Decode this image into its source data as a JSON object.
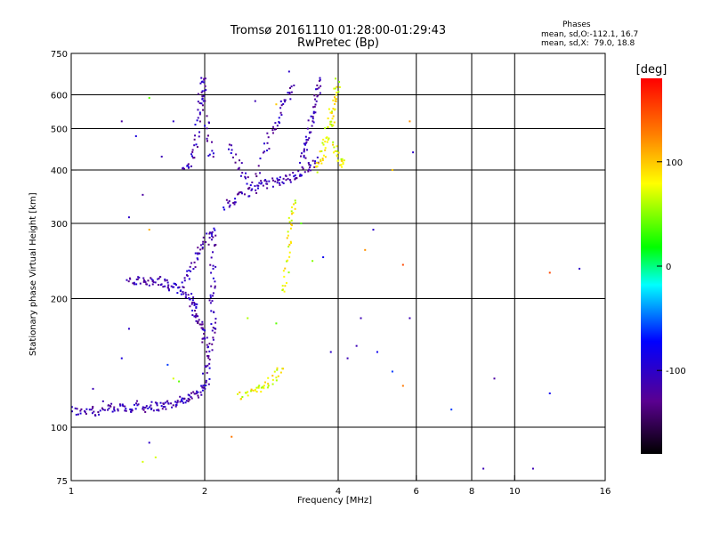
{
  "chart_data": {
    "type": "scatter",
    "title": "Tromsø 20161110 01:28:00-01:29:43",
    "subtitle": "RwPretec (Bp)",
    "xlabel": "Frequency [MHz]",
    "ylabel": "Stationary phase Virtual Height [km]",
    "xscale": "log",
    "yscale": "log",
    "xlim": [
      1,
      16
    ],
    "ylim": [
      75,
      750
    ],
    "x_ticks": [
      1,
      2,
      4,
      6,
      8,
      10,
      16
    ],
    "x_tick_labels": [
      "1",
      "2",
      "4",
      "6",
      "8",
      "10",
      "16"
    ],
    "y_ticks": [
      75,
      100,
      200,
      300,
      400,
      500,
      600,
      750
    ],
    "y_tick_labels": [
      "75",
      "100",
      "200",
      "300",
      "400",
      "500",
      "600",
      "750"
    ],
    "x_gridlines": [
      2,
      4,
      6,
      8,
      10
    ],
    "y_gridlines": [
      100,
      200,
      300,
      400,
      500,
      600
    ],
    "grid": true,
    "phases_header": "Phases",
    "phases_line1": "mean, sd,O:-112.1, 16.7",
    "phases_line2": "mean, sd,X:  79.0, 18.8",
    "colorbar": {
      "label": "[deg]",
      "range": [
        -180,
        180
      ],
      "ticks": [
        100,
        0,
        -100
      ],
      "tick_labels": [
        "100",
        "0",
        "-100"
      ]
    },
    "series": [
      {
        "name": "O",
        "phase_deg": -112,
        "traces": [
          [
            [
              1.0,
              110
            ],
            [
              1.05,
              108
            ],
            [
              1.1,
              111
            ],
            [
              1.15,
              108
            ],
            [
              1.2,
              112
            ],
            [
              1.25,
              109
            ],
            [
              1.3,
              112
            ],
            [
              1.35,
              110
            ],
            [
              1.4,
              113
            ],
            [
              1.45,
              111
            ],
            [
              1.5,
              112
            ],
            [
              1.55,
              112
            ],
            [
              1.6,
              112
            ],
            [
              1.65,
              113
            ],
            [
              1.7,
              113
            ],
            [
              1.75,
              115
            ],
            [
              1.8,
              117
            ],
            [
              1.85,
              117
            ],
            [
              1.9,
              119
            ],
            [
              1.95,
              122
            ],
            [
              2.0,
              125
            ],
            [
              2.03,
              127
            ]
          ],
          [
            [
              1.35,
              220
            ],
            [
              1.4,
              219
            ],
            [
              1.45,
              220
            ],
            [
              1.5,
              220
            ],
            [
              1.55,
              218
            ],
            [
              1.6,
              221
            ],
            [
              1.65,
              214
            ],
            [
              1.7,
              212
            ],
            [
              1.75,
              210
            ],
            [
              1.8,
              206
            ],
            [
              1.85,
              202
            ],
            [
              1.88,
              195
            ],
            [
              1.9,
              190
            ],
            [
              1.92,
              182
            ],
            [
              1.95,
              176
            ],
            [
              1.97,
              170
            ],
            [
              2.0,
              165
            ],
            [
              2.02,
              155
            ]
          ],
          [
            [
              1.8,
              215
            ],
            [
              1.85,
              230
            ],
            [
              1.9,
              245
            ],
            [
              1.95,
              258
            ],
            [
              2.0,
              270
            ],
            [
              2.05,
              280
            ],
            [
              2.1,
              288
            ],
            [
              2.08,
              250
            ],
            [
              2.1,
              220
            ],
            [
              2.07,
              200
            ],
            [
              2.1,
              180
            ],
            [
              2.08,
              165
            ],
            [
              2.05,
              150
            ],
            [
              2.03,
              140
            ],
            [
              2.0,
              133
            ]
          ],
          [
            [
              1.8,
              400
            ],
            [
              1.85,
              410
            ],
            [
              1.9,
              440
            ],
            [
              1.93,
              500
            ],
            [
              1.95,
              560
            ],
            [
              1.97,
              620
            ],
            [
              1.98,
              660
            ],
            [
              2.0,
              590
            ],
            [
              2.02,
              520
            ],
            [
              2.05,
              460
            ],
            [
              2.08,
              420
            ]
          ],
          [
            [
              2.2,
              330
            ],
            [
              2.3,
              335
            ],
            [
              2.4,
              345
            ],
            [
              2.5,
              355
            ],
            [
              2.6,
              362
            ],
            [
              2.7,
              370
            ],
            [
              2.8,
              372
            ],
            [
              2.9,
              375
            ],
            [
              3.0,
              378
            ],
            [
              3.1,
              382
            ],
            [
              3.2,
              388
            ],
            [
              3.3,
              394
            ],
            [
              3.4,
              402
            ],
            [
              3.5,
              415
            ],
            [
              3.6,
              420
            ]
          ],
          [
            [
              2.25,
              460
            ],
            [
              2.35,
              420
            ],
            [
              2.45,
              390
            ],
            [
              2.55,
              370
            ],
            [
              2.7,
              430
            ],
            [
              2.8,
              480
            ],
            [
              2.9,
              520
            ],
            [
              3.0,
              560
            ],
            [
              3.1,
              600
            ],
            [
              3.2,
              640
            ]
          ],
          [
            [
              3.3,
              420
            ],
            [
              3.35,
              440
            ],
            [
              3.4,
              470
            ],
            [
              3.45,
              500
            ],
            [
              3.5,
              540
            ],
            [
              3.55,
              580
            ],
            [
              3.6,
              620
            ],
            [
              3.65,
              650
            ]
          ]
        ]
      },
      {
        "name": "X",
        "phase_deg": 79,
        "traces": [
          [
            [
              2.4,
              118
            ],
            [
              2.5,
              120
            ],
            [
              2.6,
              122
            ],
            [
              2.7,
              125
            ],
            [
              2.8,
              128
            ],
            [
              2.9,
              132
            ],
            [
              3.0,
              136
            ]
          ],
          [
            [
              3.0,
              205
            ],
            [
              3.05,
              230
            ],
            [
              3.1,
              260
            ],
            [
              3.12,
              290
            ],
            [
              3.15,
              320
            ],
            [
              3.2,
              340
            ]
          ],
          [
            [
              3.6,
              400
            ],
            [
              3.65,
              420
            ],
            [
              3.7,
              440
            ],
            [
              3.75,
              470
            ],
            [
              3.8,
              500
            ],
            [
              3.85,
              540
            ],
            [
              3.9,
              560
            ],
            [
              3.95,
              600
            ],
            [
              4.0,
              640
            ],
            [
              3.9,
              450
            ],
            [
              4.0,
              430
            ],
            [
              4.05,
              420
            ],
            [
              4.1,
              410
            ]
          ]
        ]
      }
    ],
    "noise_points": [
      {
        "x": 1.3,
        "y": 520,
        "phase": -120
      },
      {
        "x": 1.5,
        "y": 590,
        "phase": 40
      },
      {
        "x": 1.4,
        "y": 480,
        "phase": -90
      },
      {
        "x": 1.6,
        "y": 430,
        "phase": -110
      },
      {
        "x": 1.35,
        "y": 310,
        "phase": -100
      },
      {
        "x": 1.5,
        "y": 290,
        "phase": 110
      },
      {
        "x": 1.45,
        "y": 350,
        "phase": -120
      },
      {
        "x": 1.7,
        "y": 520,
        "phase": -100
      },
      {
        "x": 2.6,
        "y": 580,
        "phase": -110
      },
      {
        "x": 2.9,
        "y": 570,
        "phase": 100
      },
      {
        "x": 3.1,
        "y": 680,
        "phase": -100
      },
      {
        "x": 3.3,
        "y": 300,
        "phase": 40
      },
      {
        "x": 4.6,
        "y": 260,
        "phase": 120
      },
      {
        "x": 4.8,
        "y": 290,
        "phase": -100
      },
      {
        "x": 5.3,
        "y": 400,
        "phase": 100
      },
      {
        "x": 5.6,
        "y": 240,
        "phase": 150
      },
      {
        "x": 5.8,
        "y": 520,
        "phase": 120
      },
      {
        "x": 5.9,
        "y": 440,
        "phase": -100
      },
      {
        "x": 4.5,
        "y": 180,
        "phase": -110
      },
      {
        "x": 4.4,
        "y": 155,
        "phase": -110
      },
      {
        "x": 5.8,
        "y": 180,
        "phase": -110
      },
      {
        "x": 5.6,
        "y": 125,
        "phase": 130
      },
      {
        "x": 7.2,
        "y": 110,
        "phase": -60
      },
      {
        "x": 9.0,
        "y": 130,
        "phase": -120
      },
      {
        "x": 8.5,
        "y": 80,
        "phase": -110
      },
      {
        "x": 11.0,
        "y": 80,
        "phase": -110
      },
      {
        "x": 12.0,
        "y": 230,
        "phase": 150
      },
      {
        "x": 14.0,
        "y": 235,
        "phase": -100
      },
      {
        "x": 12.0,
        "y": 120,
        "phase": -80
      },
      {
        "x": 1.5,
        "y": 92,
        "phase": -100
      },
      {
        "x": 1.55,
        "y": 85,
        "phase": 70
      },
      {
        "x": 1.45,
        "y": 83,
        "phase": 70
      },
      {
        "x": 2.3,
        "y": 95,
        "phase": 130
      },
      {
        "x": 1.3,
        "y": 145,
        "phase": -90
      },
      {
        "x": 1.65,
        "y": 140,
        "phase": -60
      },
      {
        "x": 1.7,
        "y": 130,
        "phase": 70
      },
      {
        "x": 1.75,
        "y": 128,
        "phase": 40
      },
      {
        "x": 3.85,
        "y": 150,
        "phase": -100
      },
      {
        "x": 4.2,
        "y": 145,
        "phase": -110
      },
      {
        "x": 4.9,
        "y": 150,
        "phase": -80
      },
      {
        "x": 5.3,
        "y": 135,
        "phase": -60
      },
      {
        "x": 2.5,
        "y": 180,
        "phase": 60
      },
      {
        "x": 2.9,
        "y": 175,
        "phase": 40
      },
      {
        "x": 3.7,
        "y": 250,
        "phase": -80
      },
      {
        "x": 3.5,
        "y": 245,
        "phase": 50
      },
      {
        "x": 1.35,
        "y": 170,
        "phase": -100
      },
      {
        "x": 1.18,
        "y": 115,
        "phase": -110
      },
      {
        "x": 1.12,
        "y": 123,
        "phase": -110
      }
    ]
  }
}
